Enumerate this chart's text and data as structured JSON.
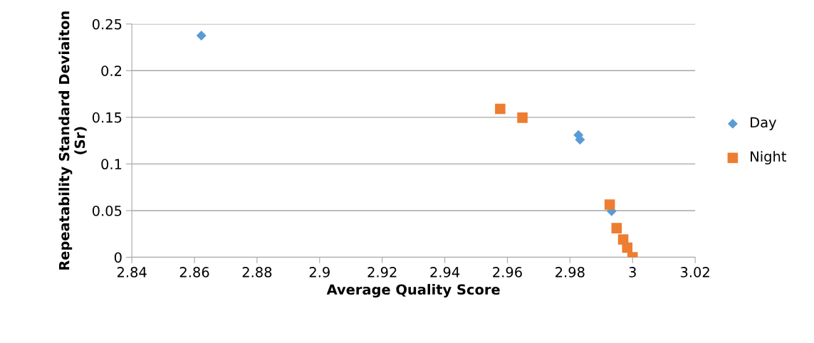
{
  "chart_data": {
    "type": "scatter",
    "xlabel": "Average Quality Score",
    "ylabel": "Repeatability Standard Deviaiton\n(Sr)",
    "xlim": [
      2.84,
      3.02
    ],
    "xticks": [
      2.84,
      2.86,
      2.88,
      2.9,
      2.92,
      2.94,
      2.96,
      2.98,
      3,
      3.02
    ],
    "ylim": [
      0,
      0.25
    ],
    "yticks": [
      0,
      0.05,
      0.1,
      0.15,
      0.2,
      0.25
    ],
    "grid": "y",
    "legend": "right",
    "series": [
      {
        "name": "Day",
        "color": "#5b9bd5",
        "marker": "diamond",
        "x": [
          2.8622,
          2.9827,
          2.9832,
          2.9933
        ],
        "values": [
          0.2376,
          0.131,
          0.126,
          0.0493
        ]
      },
      {
        "name": "Night",
        "color": "#ed7d31",
        "marker": "square",
        "x": [
          2.9577,
          2.9648,
          2.9927,
          2.9949,
          2.997,
          2.9983,
          3.0
        ],
        "values": [
          0.159,
          0.1496,
          0.0564,
          0.0312,
          0.0191,
          0.0103,
          0.0
        ]
      }
    ]
  }
}
